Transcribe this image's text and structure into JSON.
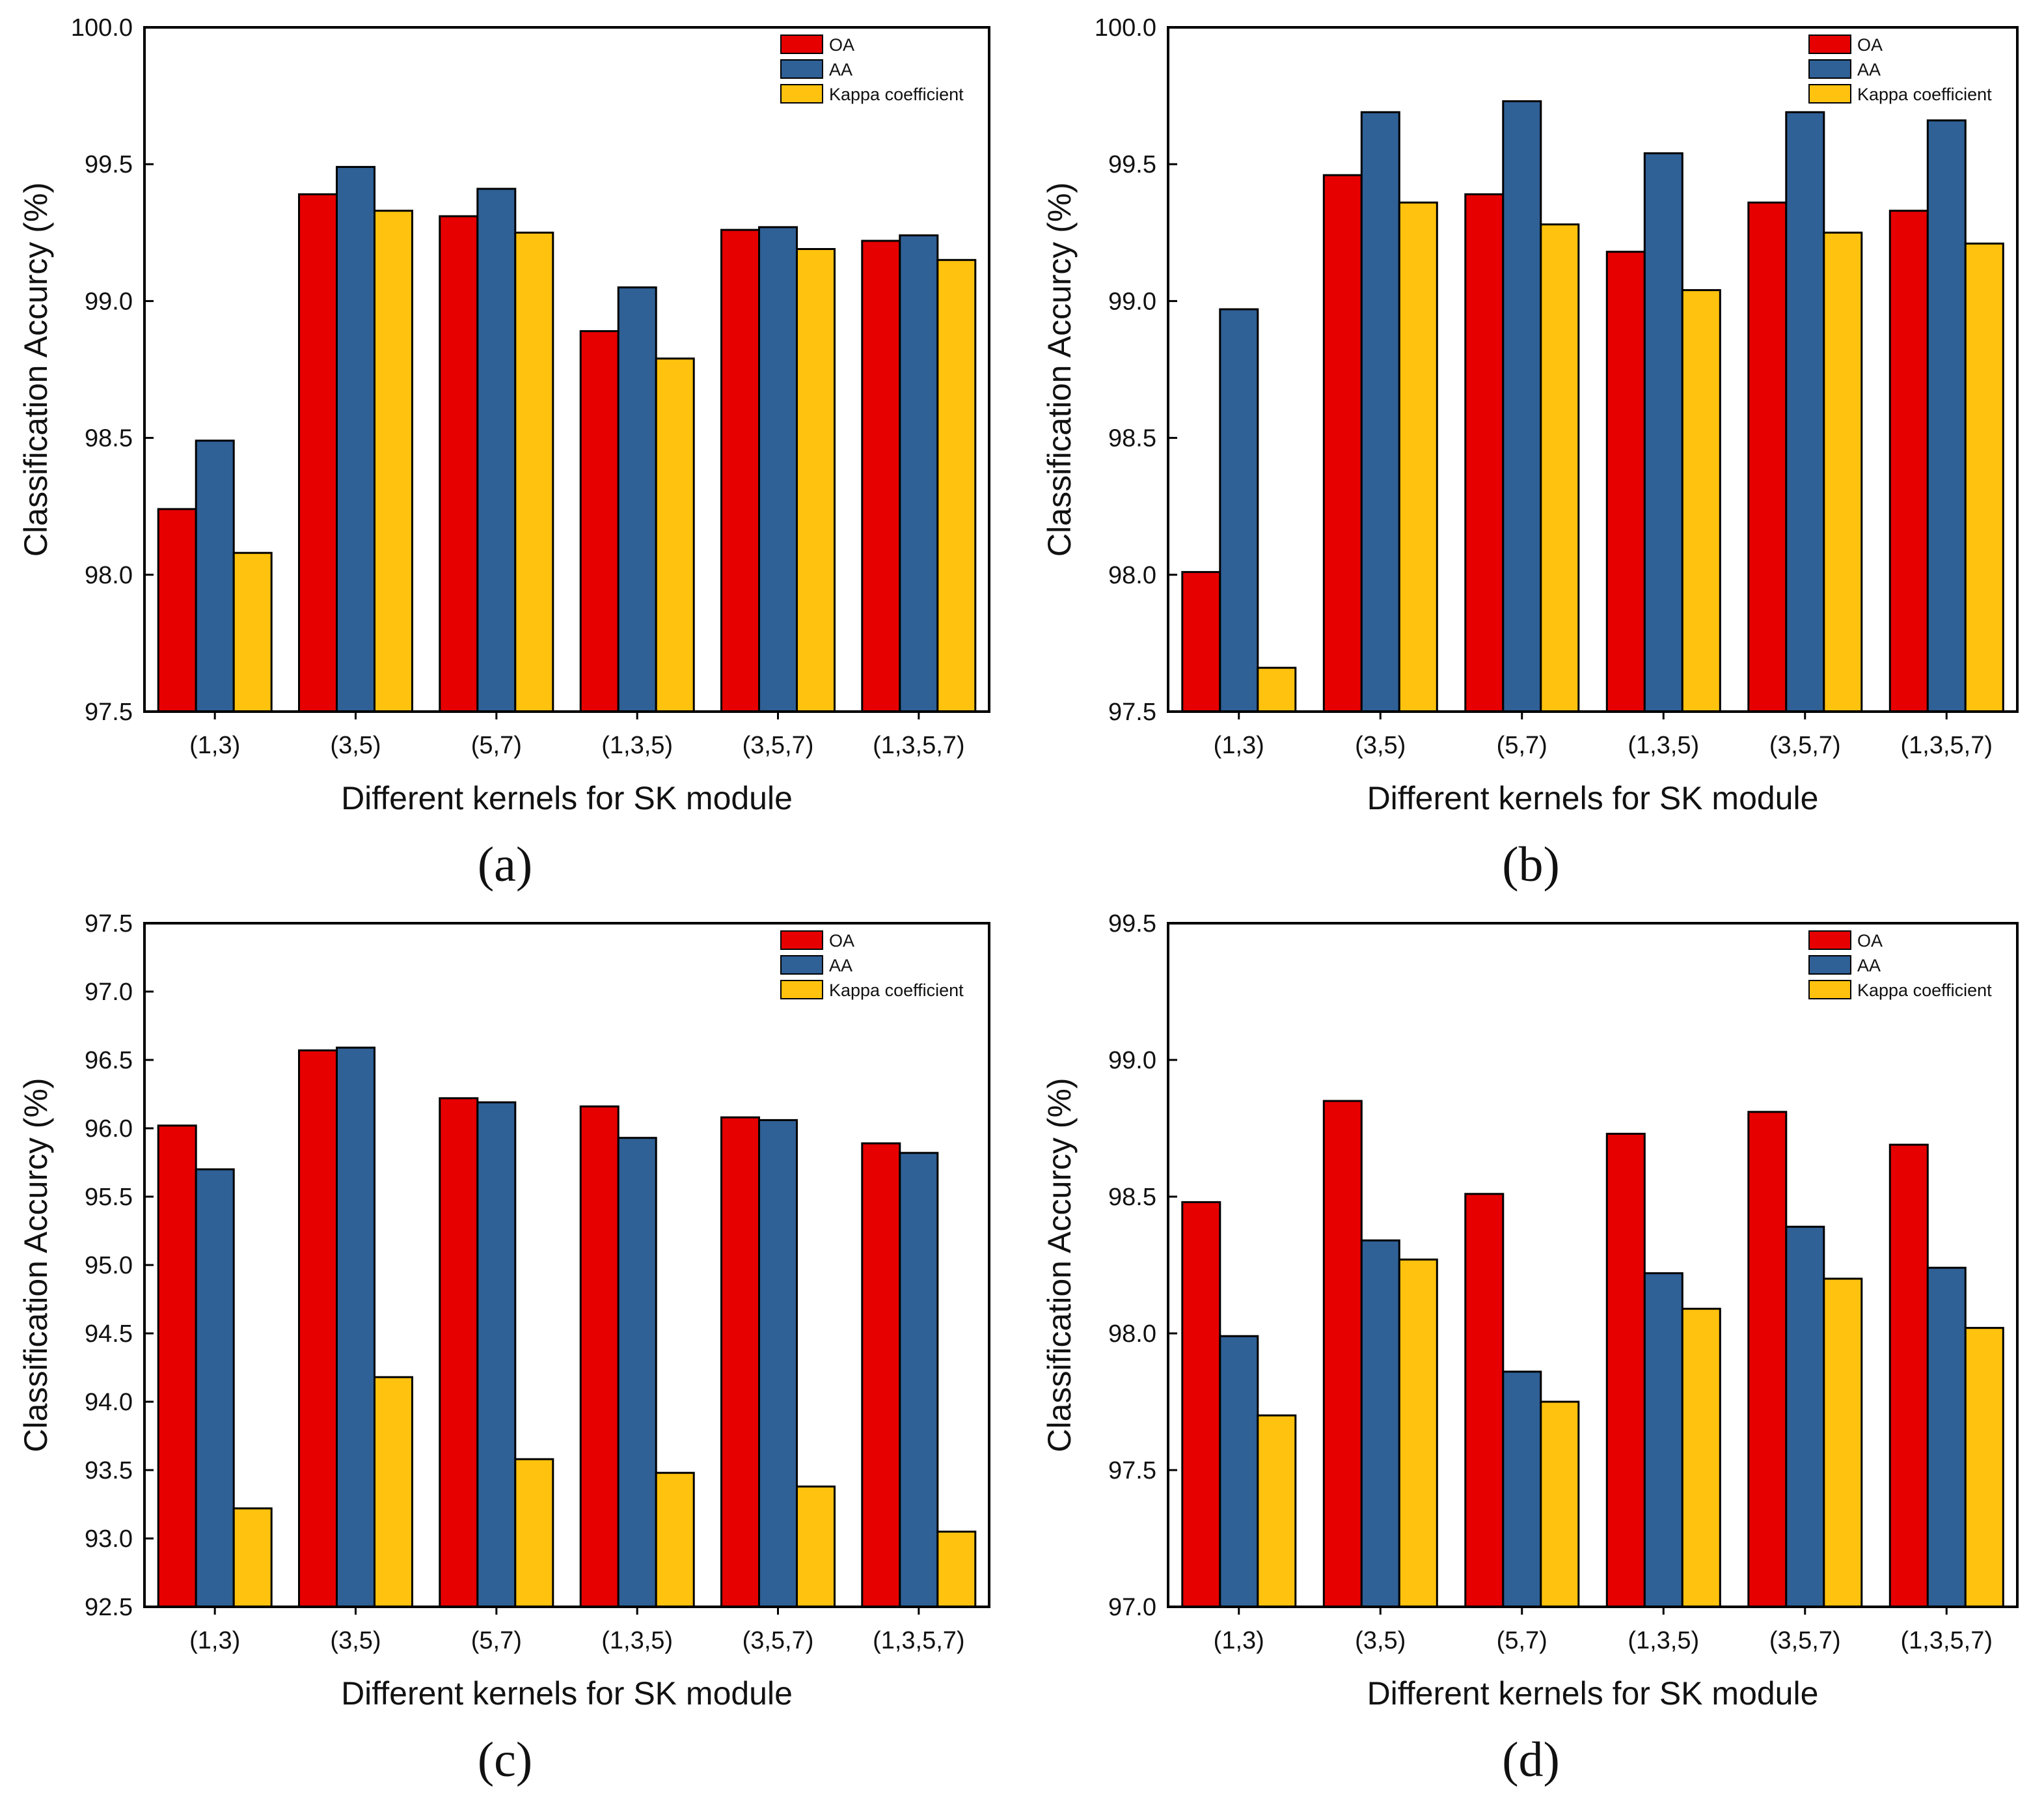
{
  "colors": {
    "OA": "#e60000",
    "AA": "#2f6096",
    "Kappa coefficient": "#ffc20e",
    "border": "#000000"
  },
  "chart_data": [
    {
      "type": "bar",
      "panel": "(a)",
      "categories": [
        "(1,3)",
        "(3,5)",
        "(5,7)",
        "(1,3,5)",
        "(3,5,7)",
        "(1,3,5,7)"
      ],
      "series": [
        {
          "name": "OA",
          "values": [
            98.24,
            99.39,
            99.31,
            98.89,
            99.26,
            99.22
          ]
        },
        {
          "name": "AA",
          "values": [
            98.49,
            99.49,
            99.41,
            99.05,
            99.27,
            99.24
          ]
        },
        {
          "name": "Kappa coefficient",
          "values": [
            98.08,
            99.33,
            99.25,
            98.79,
            99.19,
            99.15
          ]
        }
      ],
      "xlabel": "Different kernels for SK module",
      "ylabel": "Classification Accurcy (%)",
      "ylim": [
        97.5,
        100.0
      ],
      "yticks": [
        "97.5",
        "98.0",
        "98.5",
        "99.0",
        "99.5",
        "100.0"
      ],
      "legend": "top-right",
      "grid": false
    },
    {
      "type": "bar",
      "panel": "(b)",
      "categories": [
        "(1,3)",
        "(3,5)",
        "(5,7)",
        "(1,3,5)",
        "(3,5,7)",
        "(1,3,5,7)"
      ],
      "series": [
        {
          "name": "OA",
          "values": [
            98.01,
            99.46,
            99.39,
            99.18,
            99.36,
            99.33
          ]
        },
        {
          "name": "AA",
          "values": [
            98.97,
            99.69,
            99.73,
            99.54,
            99.69,
            99.66
          ]
        },
        {
          "name": "Kappa coefficient",
          "values": [
            97.66,
            99.36,
            99.28,
            99.04,
            99.25,
            99.21
          ]
        }
      ],
      "xlabel": "Different kernels for SK module",
      "ylabel": "Classification Accurcy (%)",
      "ylim": [
        97.5,
        100.0
      ],
      "yticks": [
        "97.5",
        "98.0",
        "98.5",
        "99.0",
        "99.5",
        "100.0"
      ],
      "legend": "top-right",
      "grid": false
    },
    {
      "type": "bar",
      "panel": "(c)",
      "categories": [
        "(1,3)",
        "(3,5)",
        "(5,7)",
        "(1,3,5)",
        "(3,5,7)",
        "(1,3,5,7)"
      ],
      "series": [
        {
          "name": "OA",
          "values": [
            96.02,
            96.57,
            96.22,
            96.16,
            96.08,
            95.89
          ]
        },
        {
          "name": "AA",
          "values": [
            95.7,
            96.59,
            96.19,
            95.93,
            96.06,
            95.82
          ]
        },
        {
          "name": "Kappa coefficient",
          "values": [
            93.22,
            94.18,
            93.58,
            93.48,
            93.38,
            93.05
          ]
        }
      ],
      "xlabel": "Different kernels for SK module",
      "ylabel": "Classification Accurcy (%)",
      "ylim": [
        92.5,
        97.5
      ],
      "yticks": [
        "92.5",
        "93.0",
        "93.5",
        "94.0",
        "94.5",
        "95.0",
        "95.5",
        "96.0",
        "96.5",
        "97.0",
        "97.5"
      ],
      "legend": "top-right",
      "grid": false
    },
    {
      "type": "bar",
      "panel": "(d)",
      "categories": [
        "(1,3)",
        "(3,5)",
        "(5,7)",
        "(1,3,5)",
        "(3,5,7)",
        "(1,3,5,7)"
      ],
      "series": [
        {
          "name": "OA",
          "values": [
            98.48,
            98.85,
            98.51,
            98.73,
            98.81,
            98.69
          ]
        },
        {
          "name": "AA",
          "values": [
            97.99,
            98.34,
            97.86,
            98.22,
            98.39,
            98.24
          ]
        },
        {
          "name": "Kappa coefficient",
          "values": [
            97.7,
            98.27,
            97.75,
            98.09,
            98.2,
            98.02
          ]
        }
      ],
      "xlabel": "Different kernels for SK module",
      "ylabel": "Classification Accurcy (%)",
      "ylim": [
        97.0,
        99.5
      ],
      "yticks": [
        "97.0",
        "97.5",
        "98.0",
        "98.5",
        "99.0",
        "99.5"
      ],
      "legend": "top-right",
      "grid": false
    }
  ]
}
